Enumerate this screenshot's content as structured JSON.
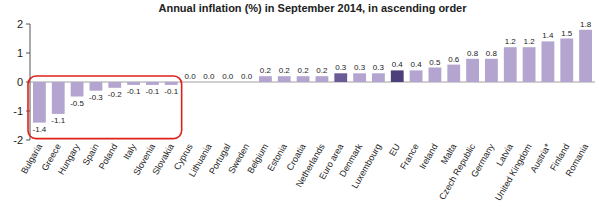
{
  "chart_data": {
    "type": "bar",
    "title": "Annual inflation (%) in September 2014, in ascending order",
    "categories": [
      "Bulgaria",
      "Greece",
      "Hungary",
      "Spain",
      "Poland",
      "Italy",
      "Slovenia",
      "Slovakia",
      "Cyprus",
      "Lithuania",
      "Portugal",
      "Sweden",
      "Belgium",
      "Estonia",
      "Croatia",
      "Netherlands",
      "Euro area",
      "Denmark",
      "Luxembourg",
      "EU",
      "France",
      "Ireland",
      "Malta",
      "Czech Republic",
      "Germany",
      "Latvia",
      "United Kingdom",
      "Austria*",
      "Finland",
      "Romania"
    ],
    "values": [
      -1.4,
      -1.1,
      -0.5,
      -0.3,
      -0.2,
      -0.1,
      -0.1,
      -0.1,
      0.0,
      0.0,
      0.0,
      0.0,
      0.2,
      0.2,
      0.2,
      0.2,
      0.3,
      0.3,
      0.3,
      0.4,
      0.4,
      0.5,
      0.6,
      0.8,
      0.8,
      1.2,
      1.2,
      1.4,
      1.5,
      1.8
    ],
    "value_labels": [
      "-1.4",
      "-1.1",
      "-0.5",
      "-0.3",
      "-0.2",
      "-0.1",
      "-0.1",
      "-0.1",
      "0.0",
      "0.0",
      "0.0",
      "0.0",
      "0.2",
      "0.2",
      "0.2",
      "0.2",
      "0.3",
      "0.3",
      "0.3",
      "0.4",
      "0.4",
      "0.5",
      "0.6",
      "0.8",
      "0.8",
      "1.2",
      "1.2",
      "1.4",
      "1.5",
      "1.8"
    ],
    "colors": [
      "#b3a5cf",
      "#b3a5cf",
      "#b3a5cf",
      "#b3a5cf",
      "#b3a5cf",
      "#b3a5cf",
      "#b3a5cf",
      "#b3a5cf",
      "#b3a5cf",
      "#b3a5cf",
      "#b3a5cf",
      "#b3a5cf",
      "#b3a5cf",
      "#b3a5cf",
      "#b3a5cf",
      "#b3a5cf",
      "#6a5a96",
      "#b3a5cf",
      "#b3a5cf",
      "#4d3f7a",
      "#b3a5cf",
      "#b3a5cf",
      "#b3a5cf",
      "#b3a5cf",
      "#b3a5cf",
      "#b3a5cf",
      "#b3a5cf",
      "#b3a5cf",
      "#b3a5cf",
      "#b3a5cf"
    ],
    "ylim": [
      -2,
      2
    ],
    "yticks": [
      -2,
      -1,
      0,
      1,
      2
    ],
    "data_labels": true
  }
}
